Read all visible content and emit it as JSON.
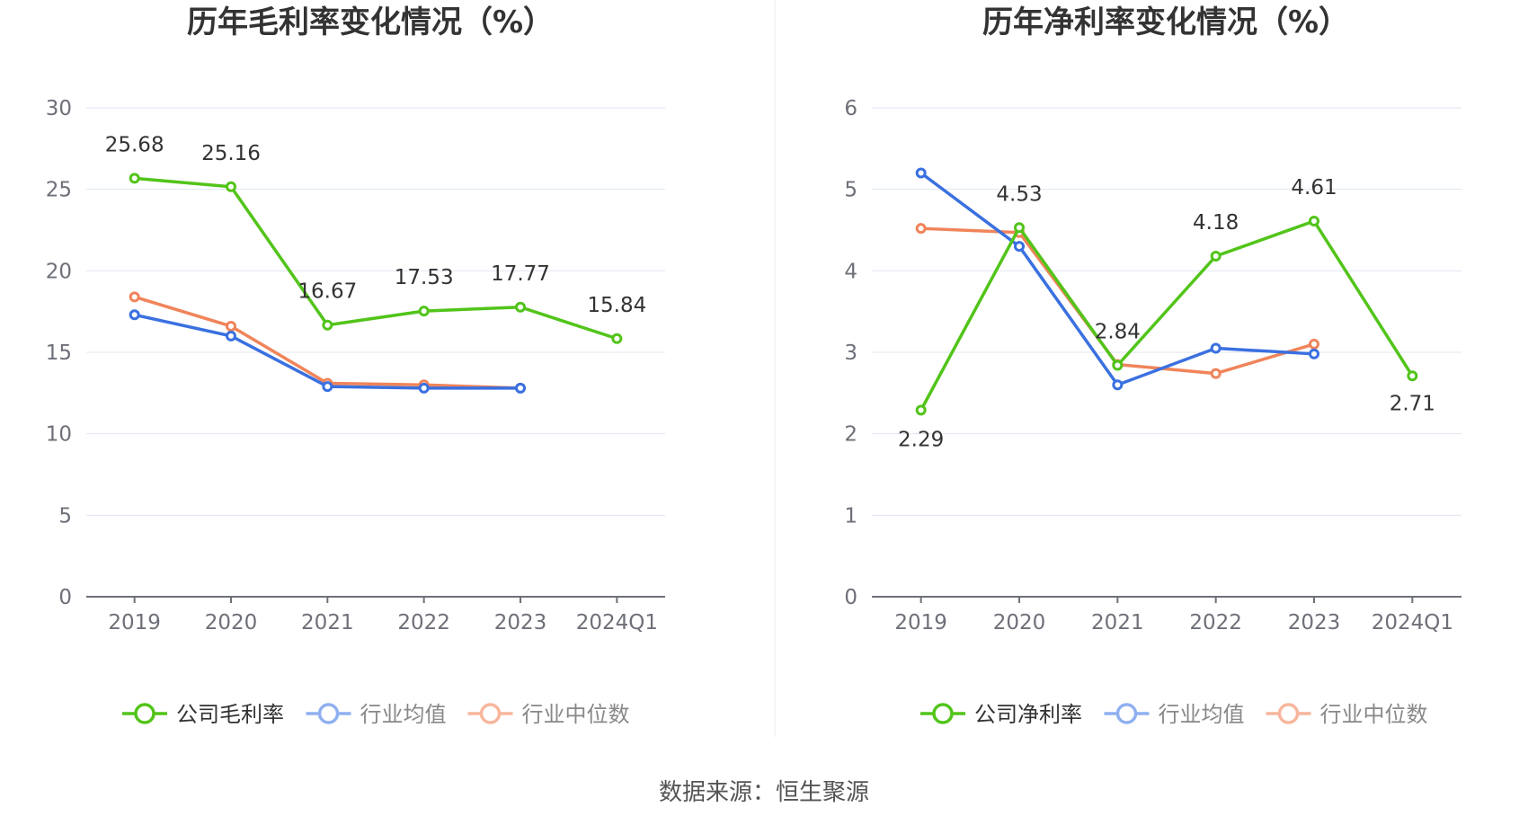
{
  "source": "数据来源：恒生聚源",
  "chart_data": [
    {
      "type": "line",
      "title": "历年毛利率变化情况（%）",
      "categories": [
        "2019",
        "2020",
        "2021",
        "2022",
        "2023",
        "2024Q1"
      ],
      "ylim": [
        0,
        30
      ],
      "yticks": [
        0,
        5,
        10,
        15,
        20,
        25,
        30
      ],
      "grid": true,
      "legend_position": "bottom",
      "series": [
        {
          "name": "公司毛利率",
          "color": "#52c41a",
          "values": [
            25.68,
            25.16,
            16.67,
            17.53,
            17.77,
            15.84
          ],
          "labels": [
            "25.68",
            "25.16",
            "16.67",
            "17.53",
            "17.77",
            "15.84"
          ]
        },
        {
          "name": "行业均值",
          "color": "#3a70e0",
          "values": [
            17.3,
            16.0,
            12.9,
            12.8,
            12.8,
            null
          ]
        },
        {
          "name": "行业中位数",
          "color": "#f0845a",
          "values": [
            18.4,
            16.6,
            13.1,
            13.0,
            12.8,
            null
          ]
        }
      ]
    },
    {
      "type": "line",
      "title": "历年净利率变化情况（%）",
      "categories": [
        "2019",
        "2020",
        "2021",
        "2022",
        "2023",
        "2024Q1"
      ],
      "ylim": [
        0,
        6
      ],
      "yticks": [
        0,
        1,
        2,
        3,
        4,
        5,
        6
      ],
      "grid": true,
      "legend_position": "bottom",
      "series": [
        {
          "name": "公司净利率",
          "color": "#52c41a",
          "values": [
            2.29,
            4.53,
            2.84,
            4.18,
            4.61,
            2.71
          ],
          "labels": [
            "2.29",
            "4.53",
            "2.84",
            "4.18",
            "4.61",
            "2.71"
          ]
        },
        {
          "name": "行业均值",
          "color": "#3a70e0",
          "values": [
            5.2,
            4.3,
            2.6,
            3.05,
            2.98,
            null
          ]
        },
        {
          "name": "行业中位数",
          "color": "#f0845a",
          "values": [
            4.52,
            4.47,
            2.85,
            2.74,
            3.1,
            null
          ]
        }
      ]
    }
  ]
}
